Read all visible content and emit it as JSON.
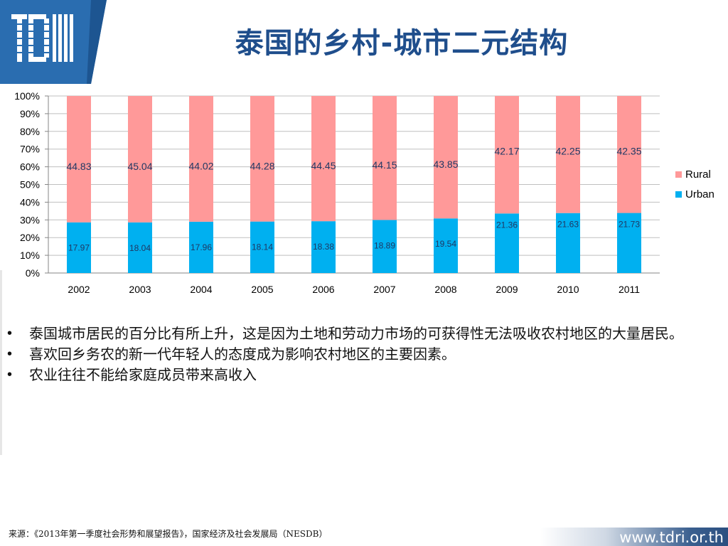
{
  "header": {
    "title": "泰国的乡村-城市二元结构",
    "logo": {
      "icon": "tdri-logo-icon",
      "color": "#2a6db0"
    }
  },
  "chart_data": {
    "type": "bar",
    "stacked": true,
    "percent": true,
    "categories": [
      "2002",
      "2003",
      "2004",
      "2005",
      "2006",
      "2007",
      "2008",
      "2009",
      "2010",
      "2011"
    ],
    "series": [
      {
        "name": "Urban",
        "color": "#00b0f0",
        "values": [
          17.97,
          18.04,
          17.96,
          18.14,
          18.38,
          18.89,
          19.54,
          21.36,
          21.63,
          21.73
        ]
      },
      {
        "name": "Rural",
        "color": "#ff9999",
        "values": [
          44.83,
          45.04,
          44.02,
          44.28,
          44.45,
          44.15,
          43.85,
          42.17,
          42.25,
          42.35
        ]
      }
    ],
    "ylim": [
      0,
      100
    ],
    "yticks": [
      "0%",
      "10%",
      "20%",
      "30%",
      "40%",
      "50%",
      "60%",
      "70%",
      "80%",
      "90%",
      "100%"
    ],
    "grid": true,
    "legend": "right"
  },
  "bullets": [
    "泰国城市居民的百分比有所上升，这是因为土地和劳动力市场的可获得性无法吸收农村地区的大量居民。",
    "喜欢回乡务农的新一代年轻人的态度成为影响农村地区的主要因素。",
    "农业往往不能给家庭成员带来高收入"
  ],
  "bullet_char": "•",
  "footer": {
    "source": "来源：《2013年第一季度社会形势和展望报告》，国家经济及社会发展局（NESDB）",
    "url": "www.tdri.or.th"
  }
}
